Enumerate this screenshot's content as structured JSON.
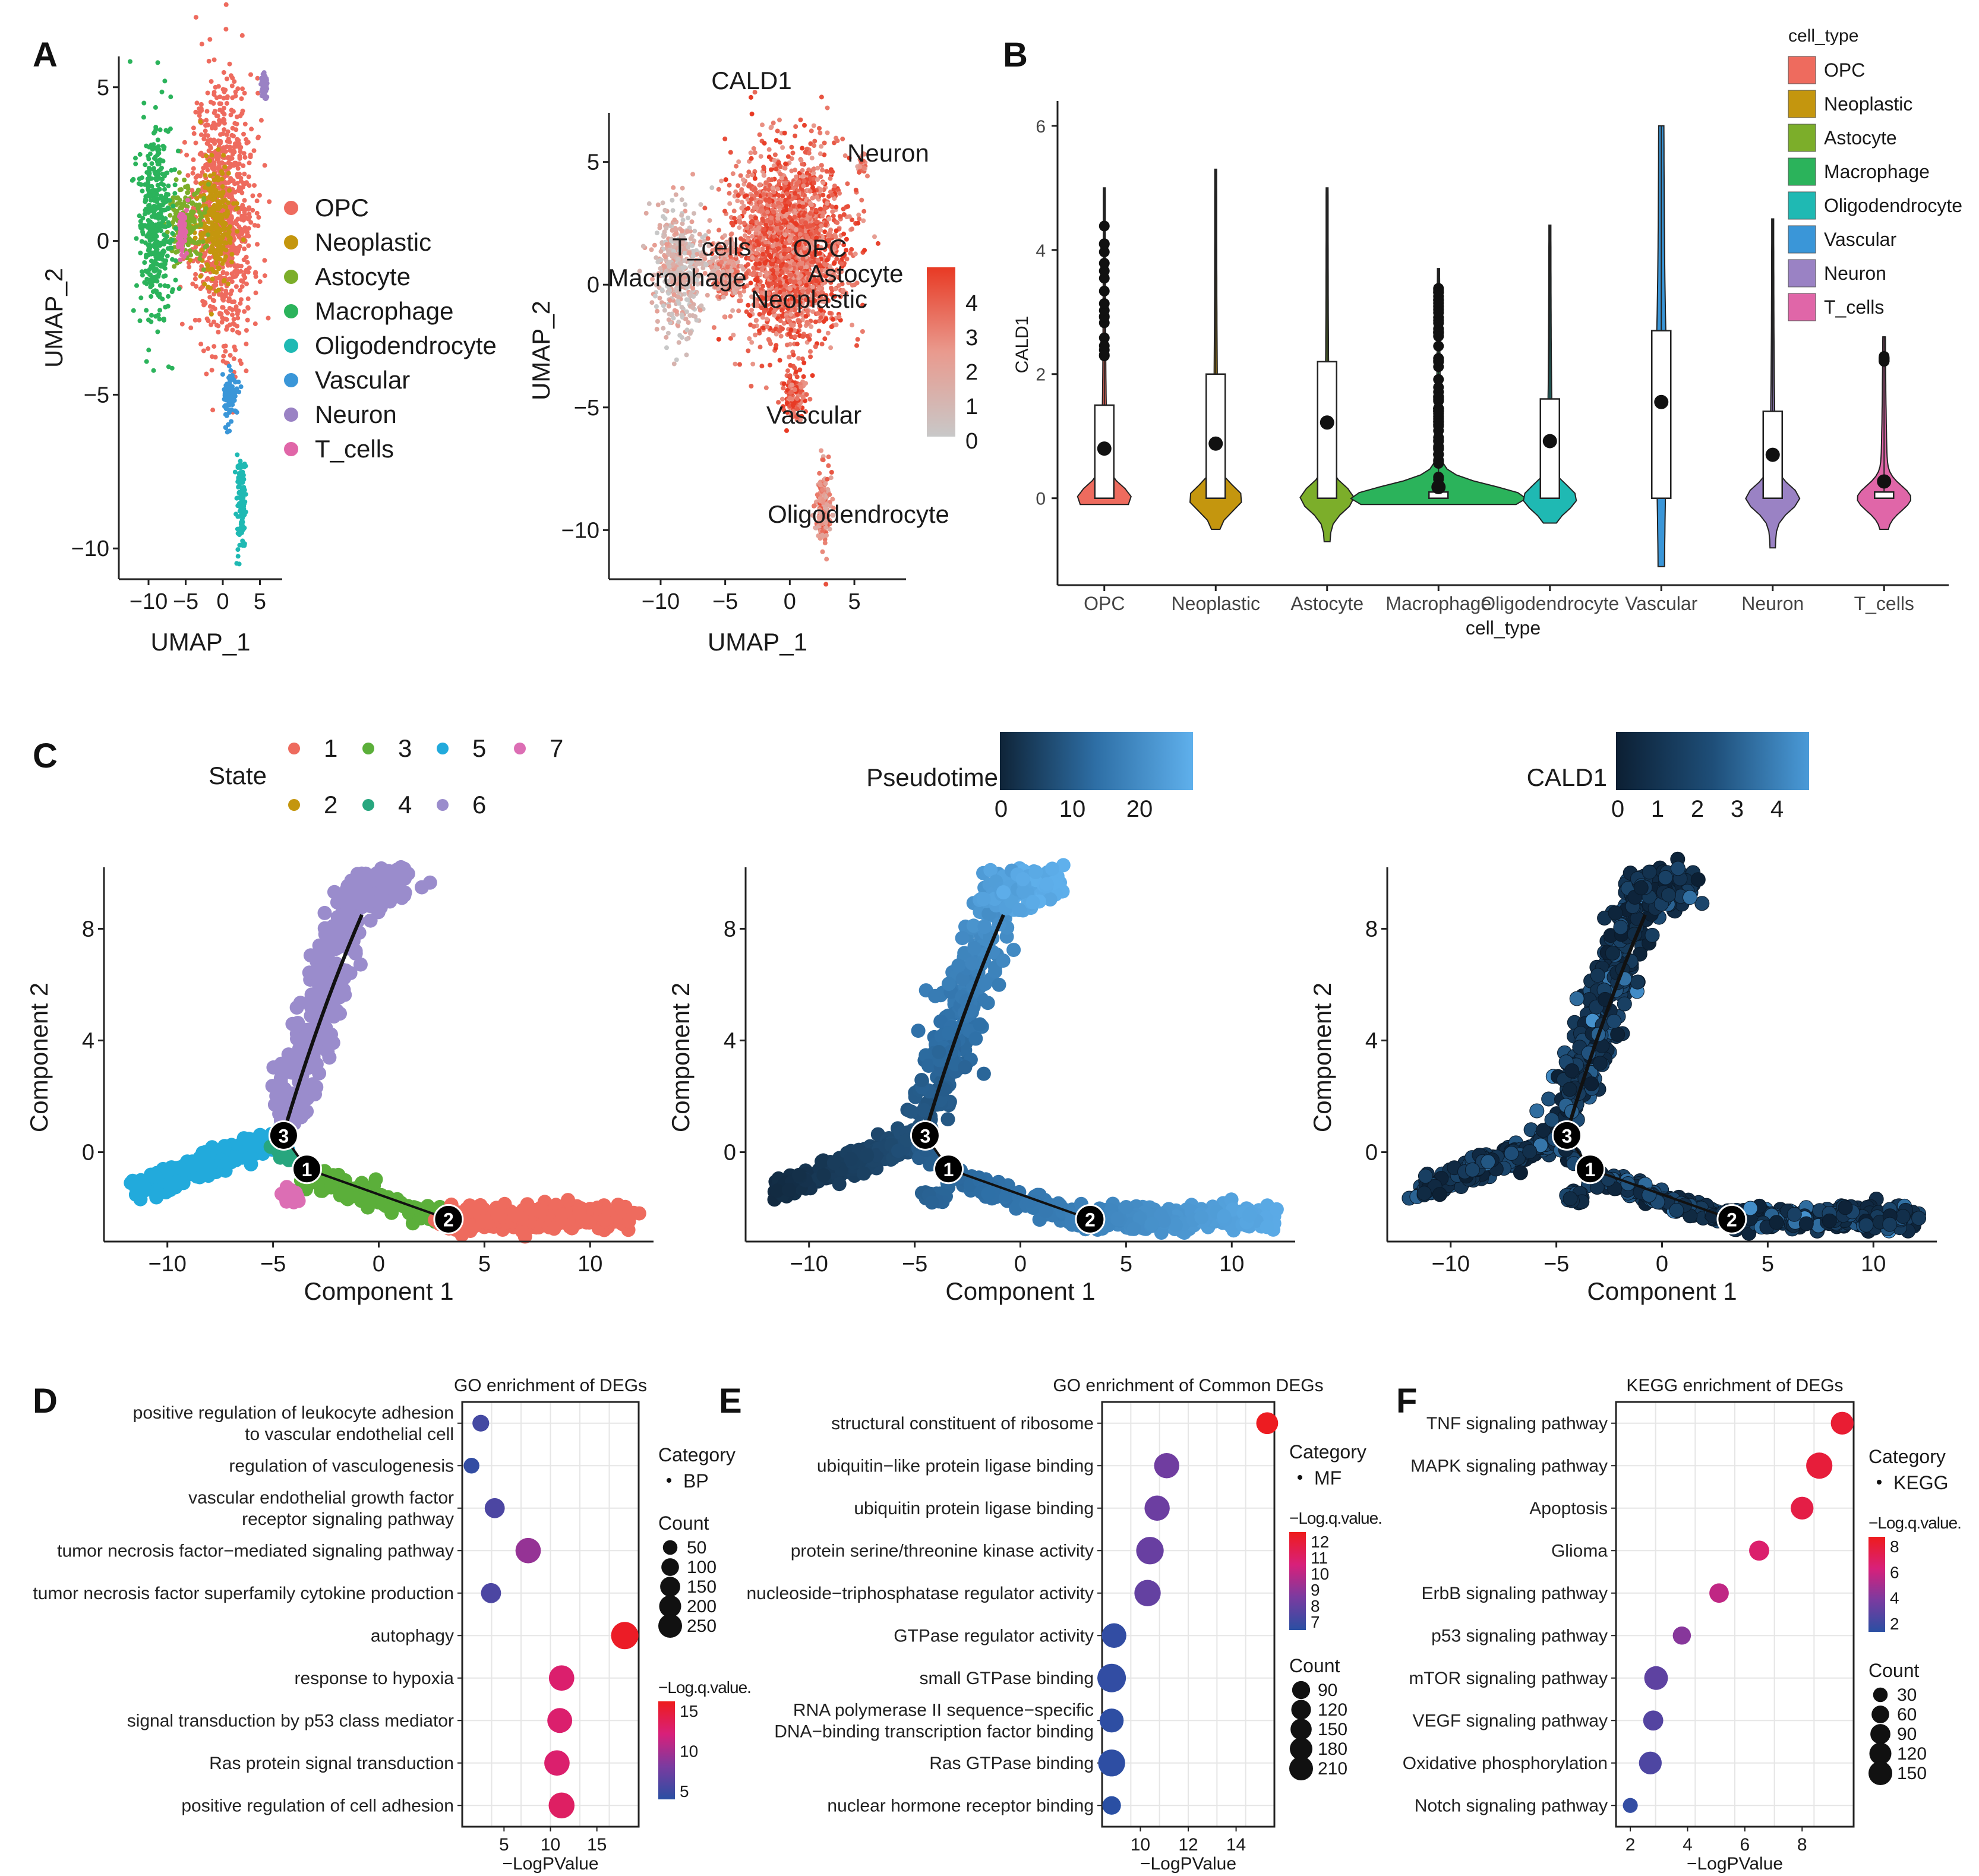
{
  "colors": {
    "opc": "#EE6B5E",
    "neoplastic": "#C4960E",
    "astrocyte": "#7CAE2A",
    "macrophage": "#2BB35B",
    "oligodendrocyte": "#1FB9B3",
    "vascular": "#3A96D8",
    "neuron": "#9A82C4",
    "t_cells": "#E066A8",
    "state_colors": [
      "#EE6B5E",
      "#C4960E",
      "#5BAF3A",
      "#27A67E",
      "#22AADC",
      "#9A8CCC",
      "#DC6EB4"
    ]
  },
  "chart_data": [
    {
      "panel": "A",
      "id": "umap-celltype",
      "type": "scatter",
      "title": "",
      "xlabel": "UMAP_1",
      "ylabel": "UMAP_2",
      "xticks": [
        "−10",
        "−5",
        "0",
        "5"
      ],
      "yticks": [
        "5",
        "0",
        "−5",
        "−10"
      ],
      "xlim": [
        -14,
        8
      ],
      "ylim": [
        -11,
        6
      ],
      "legend_position": "right",
      "legend": [
        "OPC",
        "Neoplastic",
        "Astocyte",
        "Macrophage",
        "Oligodendrocyte",
        "Vascular",
        "Neuron",
        "T_cells"
      ],
      "clusters": [
        {
          "name": "OPC",
          "cx": 0,
          "cy": 1,
          "rx": 4.5,
          "ry": 4.8
        },
        {
          "name": "Neoplastic",
          "cx": -1,
          "cy": 0.5,
          "rx": 2.8,
          "ry": 2.0
        },
        {
          "name": "Astocyte",
          "cx": -5,
          "cy": 0.5,
          "rx": 2.5,
          "ry": 1.4
        },
        {
          "name": "Macrophage",
          "cx": -9,
          "cy": 0.5,
          "rx": 2.5,
          "ry": 3.5
        },
        {
          "name": "Oligodendrocyte",
          "cx": 2.5,
          "cy": -8.5,
          "rx": 0.7,
          "ry": 1.8
        },
        {
          "name": "Vascular",
          "cx": 1,
          "cy": -5,
          "rx": 1.0,
          "ry": 1.0
        },
        {
          "name": "Neuron",
          "cx": 5.6,
          "cy": 5,
          "rx": 0.4,
          "ry": 0.5
        },
        {
          "name": "T_cells",
          "cx": -5.5,
          "cy": 0.3,
          "rx": 0.6,
          "ry": 0.8
        }
      ]
    },
    {
      "panel": "A",
      "id": "umap-cald1",
      "type": "scatter",
      "title": "CALD1",
      "xlabel": "UMAP_1",
      "ylabel": "UMAP_2",
      "xticks": [
        "−10",
        "−5",
        "0",
        "5"
      ],
      "yticks": [
        "5",
        "0",
        "−5",
        "−10"
      ],
      "xlim": [
        -14,
        9
      ],
      "ylim": [
        -12,
        7
      ],
      "colorbar_ticks": [
        "4",
        "3",
        "2",
        "1",
        "0"
      ],
      "annotations": [
        "Neuron",
        "T_cells",
        "OPC",
        "Astocyte",
        "Macrophage",
        "Neoplastic",
        "Vascular",
        "Oligodendrocyte"
      ]
    },
    {
      "panel": "B",
      "id": "violin-cald1",
      "type": "violin",
      "xlabel": "cell_type",
      "ylabel": "CALD1",
      "yticks": [
        "6",
        "4",
        "2",
        "0"
      ],
      "ylim": [
        -1.4,
        6.4
      ],
      "legend_title": "cell_type",
      "categories": [
        "OPC",
        "Neoplastic",
        "Astocyte",
        "Macrophage",
        "Oligodendrocyte",
        "Vascular",
        "Neuron",
        "T_cells"
      ],
      "legend_labels": [
        "OPC",
        "Neoplastic",
        "Astocyte",
        "Macrophage",
        "Oligodendrocyte",
        "Vascular",
        "Neuron",
        "T_cells"
      ],
      "means": [
        0.8,
        0.88,
        1.22,
        0.18,
        0.92,
        1.55,
        0.7,
        0.27
      ],
      "box_q1": [
        0,
        0,
        0,
        0,
        0,
        0,
        0,
        0
      ],
      "box_q3": [
        1.5,
        2.0,
        2.2,
        0.1,
        1.6,
        2.7,
        1.4,
        0.1
      ],
      "whisker_max": [
        5.0,
        5.3,
        5.0,
        3.7,
        4.4,
        6.0,
        4.5,
        2.6
      ],
      "whisker_min": [
        -0.1,
        -0.5,
        -0.7,
        -0.1,
        -0.4,
        -1.1,
        -0.8,
        -0.5
      ]
    },
    {
      "panel": "C",
      "id": "trajectory-state",
      "type": "scatter",
      "xlabel": "Component 1",
      "ylabel": "Component 2",
      "xticks": [
        "−10",
        "−5",
        "0",
        "5",
        "10"
      ],
      "yticks": [
        "8",
        "4",
        "0"
      ],
      "xlim": [
        -13,
        13
      ],
      "ylim": [
        -3.2,
        10.2
      ],
      "legend_title": "State",
      "legend": [
        "1",
        "3",
        "5",
        "7",
        "2",
        "4",
        "6"
      ],
      "branch_points": [
        "3",
        "1",
        "2"
      ]
    },
    {
      "panel": "C",
      "id": "trajectory-pseudotime",
      "type": "scatter",
      "xlabel": "Component 1",
      "ylabel": "Component 2",
      "xticks": [
        "−10",
        "−5",
        "0",
        "5",
        "10"
      ],
      "yticks": [
        "8",
        "4",
        "0"
      ],
      "xlim": [
        -13,
        13
      ],
      "ylim": [
        -3.2,
        10.2
      ],
      "colorbar_title": "Pseudotime",
      "colorbar_ticks": [
        "0",
        "10",
        "20"
      ],
      "branch_points": [
        "3",
        "1",
        "2"
      ]
    },
    {
      "panel": "C",
      "id": "trajectory-cald1",
      "type": "scatter",
      "xlabel": "Component 1",
      "ylabel": "Component 2",
      "xticks": [
        "−10",
        "−5",
        "0",
        "5",
        "10"
      ],
      "yticks": [
        "8",
        "4",
        "0"
      ],
      "xlim": [
        -13,
        13
      ],
      "ylim": [
        -3.2,
        10.2
      ],
      "colorbar_title": "CALD1",
      "colorbar_ticks": [
        "0",
        "1",
        "2",
        "3",
        "4"
      ],
      "branch_points": [
        "3",
        "1",
        "2"
      ]
    },
    {
      "panel": "D",
      "id": "go-degs",
      "type": "scatter",
      "title": "GO enrichment of DEGs",
      "xlabel": "−LogPValue",
      "xticks": [
        "5",
        "10",
        "15"
      ],
      "xlim": [
        0.5,
        19.5
      ],
      "terms": [
        "positive regulation of leukocyte adhesion\nto vascular endothelial cell",
        "regulation of vasculogenesis",
        "vascular endothelial growth factor\nreceptor signaling pathway",
        "tumor necrosis factor−mediated signaling pathway",
        "tumor necrosis factor superfamily cytokine production",
        "autophagy",
        "response to hypoxia",
        "signal transduction by p53 class mediator",
        "Ras protein signal transduction",
        "positive regulation of cell adhesion"
      ],
      "x": [
        2.5,
        1.5,
        4.0,
        7.6,
        3.6,
        18.0,
        11.2,
        11.0,
        10.7,
        11.2
      ],
      "count": [
        25,
        20,
        45,
        90,
        45,
        110,
        90,
        85,
        90,
        95
      ],
      "q": [
        3.5,
        2.5,
        4.0,
        8.0,
        4.0,
        15.5,
        12.0,
        12.0,
        12.0,
        12.5
      ],
      "category_title": "Category",
      "category_label": "BP",
      "count_title": "Count",
      "count_legend": [
        "50",
        "100",
        "150",
        "200",
        "250"
      ],
      "q_title": "−Log.q.value.",
      "q_ticks": [
        "15",
        "10",
        "5"
      ],
      "q_range": [
        2,
        16
      ]
    },
    {
      "panel": "E",
      "id": "go-common-degs",
      "type": "scatter",
      "title": "GO enrichment of Common DEGs",
      "xlabel": "−LogPValue",
      "xticks": [
        "10",
        "12",
        "14"
      ],
      "xlim": [
        8.4,
        15.6
      ],
      "terms": [
        "structural constituent of ribosome",
        "ubiquitin−like protein ligase binding",
        "ubiquitin protein ligase binding",
        "protein serine/threonine kinase activity",
        "nucleoside−triphosphatase regulator activity",
        "GTPase regulator activity",
        "small GTPase binding",
        "RNA polymerase II sequence−specific\nDNA−binding transcription factor binding",
        "Ras GTPase binding",
        "nuclear hormone receptor binding"
      ],
      "x": [
        15.3,
        11.1,
        10.7,
        10.4,
        10.3,
        8.9,
        8.8,
        8.8,
        8.8,
        8.8
      ],
      "count": [
        100,
        150,
        150,
        190,
        170,
        140,
        210,
        130,
        180,
        60
      ],
      "q": [
        12.5,
        8.5,
        8.4,
        8.3,
        8.2,
        7.0,
        7.0,
        6.9,
        6.9,
        6.8
      ],
      "category_title": "Category",
      "category_label": "MF",
      "q_title": "−Log.q.value.",
      "q_ticks": [
        "12",
        "11",
        "10",
        "9",
        "8",
        "7"
      ],
      "q_range": [
        6.8,
        12.6
      ],
      "count_title": "Count",
      "count_legend": [
        "90",
        "120",
        "150",
        "180",
        "210"
      ]
    },
    {
      "panel": "F",
      "id": "kegg-degs",
      "type": "scatter",
      "title": "KEGG enrichment of DEGs",
      "xlabel": "−LogPValue",
      "xticks": [
        "2",
        "4",
        "6",
        "8"
      ],
      "xlim": [
        1.5,
        9.8
      ],
      "terms": [
        "TNF signaling pathway",
        "MAPK signaling pathway",
        "Apoptosis",
        "Glioma",
        "ErbB signaling pathway",
        "p53 signaling pathway",
        "mTOR signaling pathway",
        "VEGF signaling pathway",
        "Oxidative phosphorylation",
        "Notch signaling pathway"
      ],
      "x": [
        9.4,
        8.6,
        8.0,
        6.5,
        5.1,
        3.8,
        2.9,
        2.8,
        2.7,
        2.0
      ],
      "count": [
        80,
        120,
        80,
        55,
        50,
        40,
        90,
        55,
        80,
        20
      ],
      "q": [
        8.0,
        7.8,
        7.5,
        6.5,
        5.5,
        4.0,
        2.8,
        2.5,
        2.3,
        1.5
      ],
      "category_title": "Category",
      "category_label": "KEGG",
      "q_title": "−Log.q.value.",
      "q_ticks": [
        "8",
        "6",
        "4",
        "2"
      ],
      "q_range": [
        1.2,
        8.6
      ],
      "count_title": "Count",
      "count_legend": [
        "30",
        "60",
        "90",
        "120",
        "150"
      ]
    }
  ],
  "panel_labels": [
    "A",
    "B",
    "C",
    "D",
    "E",
    "F"
  ]
}
